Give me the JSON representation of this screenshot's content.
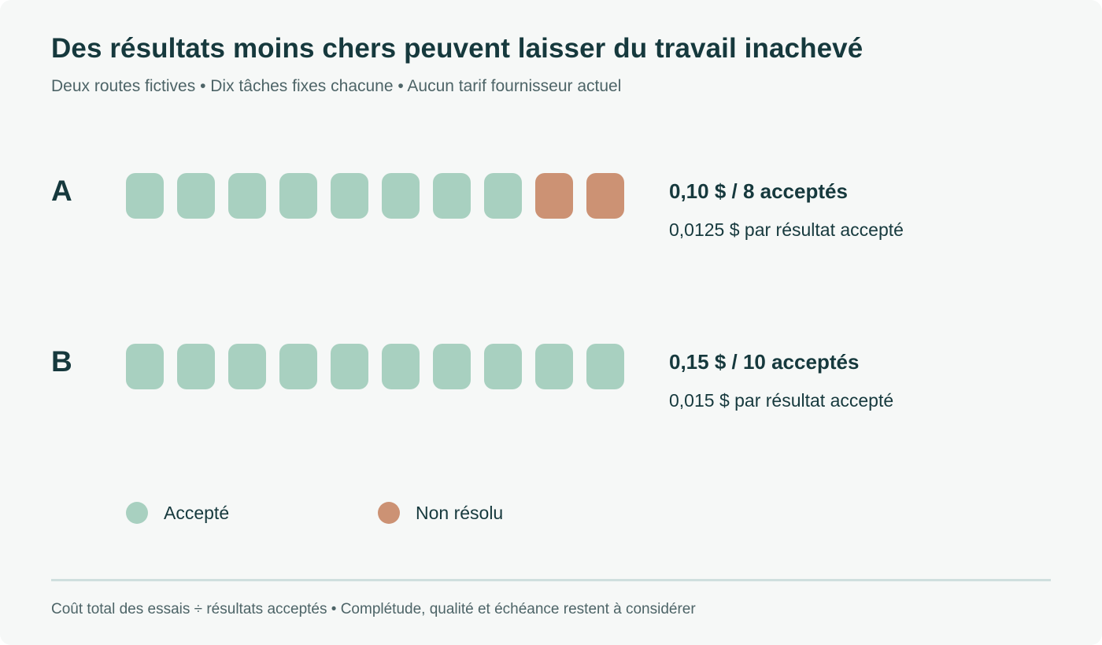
{
  "title": "Des résultats moins chers peuvent laisser du travail inachevé",
  "subtitle": "Deux routes fictives • Dix tâches fixes chacune • Aucun tarif fournisseur actuel",
  "colors": {
    "accepted": "#a8d0c0",
    "unresolved": "#cc9274",
    "text": "#16393d",
    "muted": "#4d6467"
  },
  "chart_data": {
    "type": "table",
    "routes": [
      {
        "name": "A",
        "tasks": [
          "accepted",
          "accepted",
          "accepted",
          "accepted",
          "accepted",
          "accepted",
          "accepted",
          "accepted",
          "unresolved",
          "unresolved"
        ],
        "total_cost_label": "0,10 $ / 8 acceptés",
        "per_result_label": "0,0125 $ par résultat accepté"
      },
      {
        "name": "B",
        "tasks": [
          "accepted",
          "accepted",
          "accepted",
          "accepted",
          "accepted",
          "accepted",
          "accepted",
          "accepted",
          "accepted",
          "accepted"
        ],
        "total_cost_label": "0,15 $ / 10 acceptés",
        "per_result_label": "0,015 $ par résultat accepté"
      }
    ],
    "legend": [
      {
        "key": "accepted",
        "label": "Accepté"
      },
      {
        "key": "unresolved",
        "label": "Non résolu"
      }
    ]
  },
  "footnote": "Coût total des essais ÷ résultats acceptés • Complétude, qualité et échéance restent à considérer"
}
